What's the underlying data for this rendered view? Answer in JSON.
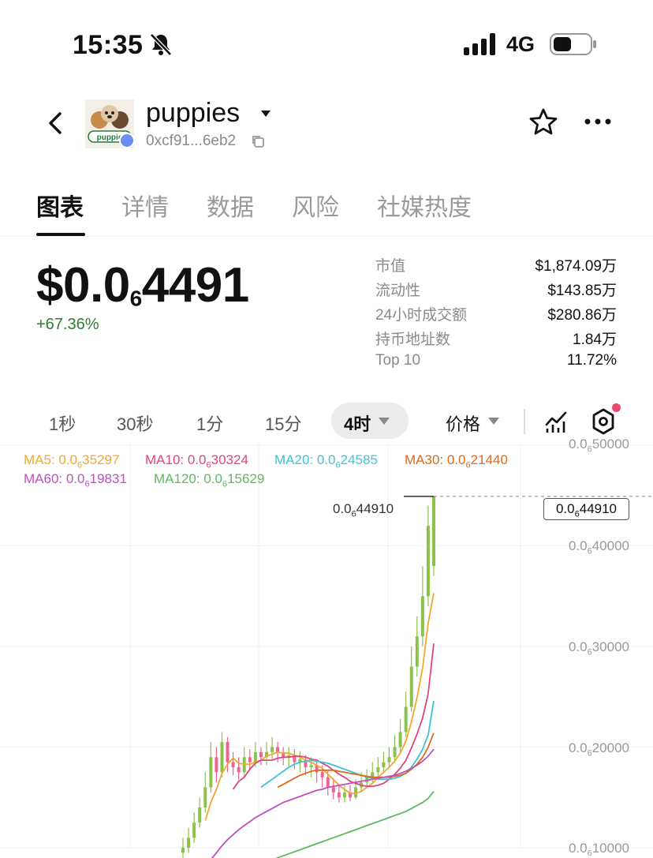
{
  "status_bar": {
    "time": "15:35",
    "network": "4G"
  },
  "header": {
    "token_name": "puppies",
    "address": "0xcf91...6eb2",
    "avatar_text": "puppie"
  },
  "tabs": [
    {
      "label": "图表",
      "active": true
    },
    {
      "label": "详情",
      "active": false
    },
    {
      "label": "数据",
      "active": false
    },
    {
      "label": "风险",
      "active": false
    },
    {
      "label": "社媒热度",
      "active": false
    }
  ],
  "price": {
    "prefix": "$0.0",
    "zeros_subscript": "6",
    "digits": "4491",
    "change": "+67.36%"
  },
  "stats": [
    {
      "label": "市值",
      "value": "$1,874.09万"
    },
    {
      "label": "流动性",
      "value": "$143.85万"
    },
    {
      "label": "24小时成交额",
      "value": "$280.86万"
    },
    {
      "label": "持币地址数",
      "value": "1.84万"
    },
    {
      "label": "Top 10",
      "value": "11.72%"
    }
  ],
  "timeframes": {
    "items": [
      "1秒",
      "30秒",
      "1分",
      "15分"
    ],
    "active": "4时",
    "price_type": "价格"
  },
  "colors": {
    "up": "#8bc34a",
    "down": "#f06292",
    "ma5": "#f0a830",
    "ma10": "#e0457b",
    "ma20": "#3cc4d6",
    "ma30": "#e06a1a",
    "ma60": "#c04fc0",
    "ma120": "#5fb85f"
  },
  "chart_legend": [
    {
      "name": "MA5",
      "prefix": "MA5: 0.0",
      "sub": "6",
      "rest": "35297"
    },
    {
      "name": "MA10",
      "prefix": "MA10: 0.0",
      "sub": "6",
      "rest": "30324"
    },
    {
      "name": "MA20",
      "prefix": "MA20: 0.0",
      "sub": "6",
      "rest": "24585"
    },
    {
      "name": "MA30",
      "prefix": "MA30: 0.0",
      "sub": "6",
      "rest": "21440"
    },
    {
      "name": "MA60",
      "prefix": "MA60: 0.0",
      "sub": "6",
      "rest": "19831"
    },
    {
      "name": "MA120",
      "prefix": "MA120: 0.0",
      "sub": "6",
      "rest": "15629"
    }
  ],
  "chart_data": {
    "type": "candlestick",
    "y_unit": "price (×1e-6 USD, displayed as 0.0₆xxxxx)",
    "y_ticks": [
      {
        "prefix": "0.0",
        "sub": "6",
        "rest": "50000",
        "value": 0.5
      },
      {
        "prefix": "0.0",
        "sub": "6",
        "rest": "40000",
        "value": 0.4
      },
      {
        "prefix": "0.0",
        "sub": "6",
        "rest": "30000",
        "value": 0.3
      },
      {
        "prefix": "0.0",
        "sub": "6",
        "rest": "20000",
        "value": 0.2
      },
      {
        "prefix": "0.0",
        "sub": "6",
        "rest": "10000",
        "value": 0.1
      }
    ],
    "ylim": [
      0.095,
      0.51
    ],
    "high_label": {
      "prefix": "0.0",
      "sub": "6",
      "rest": "44910",
      "value": 0.4491
    },
    "current": {
      "prefix": "0.0",
      "sub": "6",
      "rest": "44910",
      "value": 0.4491
    },
    "close": [
      0.1,
      0.11,
      0.125,
      0.14,
      0.16,
      0.19,
      0.175,
      0.205,
      0.185,
      0.18,
      0.175,
      0.19,
      0.185,
      0.195,
      0.19,
      0.195,
      0.2,
      0.195,
      0.19,
      0.192,
      0.185,
      0.188,
      0.18,
      0.182,
      0.175,
      0.17,
      0.16,
      0.155,
      0.15,
      0.155,
      0.15,
      0.16,
      0.165,
      0.17,
      0.175,
      0.18,
      0.185,
      0.19,
      0.2,
      0.215,
      0.24,
      0.28,
      0.31,
      0.35,
      0.42,
      0.4491
    ],
    "open": [
      0.095,
      0.1,
      0.11,
      0.125,
      0.14,
      0.16,
      0.19,
      0.175,
      0.205,
      0.185,
      0.18,
      0.175,
      0.19,
      0.185,
      0.195,
      0.19,
      0.195,
      0.2,
      0.195,
      0.19,
      0.192,
      0.185,
      0.188,
      0.18,
      0.182,
      0.175,
      0.17,
      0.16,
      0.155,
      0.15,
      0.155,
      0.15,
      0.16,
      0.165,
      0.17,
      0.175,
      0.18,
      0.185,
      0.19,
      0.2,
      0.215,
      0.24,
      0.28,
      0.31,
      0.35,
      0.38
    ],
    "high": [
      0.11,
      0.12,
      0.135,
      0.15,
      0.175,
      0.205,
      0.2,
      0.215,
      0.21,
      0.195,
      0.19,
      0.2,
      0.198,
      0.205,
      0.2,
      0.205,
      0.21,
      0.205,
      0.2,
      0.2,
      0.198,
      0.196,
      0.192,
      0.19,
      0.188,
      0.182,
      0.176,
      0.168,
      0.162,
      0.162,
      0.162,
      0.168,
      0.175,
      0.178,
      0.185,
      0.19,
      0.195,
      0.2,
      0.212,
      0.228,
      0.255,
      0.3,
      0.33,
      0.38,
      0.44,
      0.4491
    ],
    "low": [
      0.09,
      0.095,
      0.105,
      0.12,
      0.135,
      0.155,
      0.165,
      0.17,
      0.175,
      0.172,
      0.168,
      0.17,
      0.178,
      0.18,
      0.182,
      0.182,
      0.188,
      0.185,
      0.182,
      0.18,
      0.178,
      0.175,
      0.172,
      0.17,
      0.165,
      0.16,
      0.152,
      0.148,
      0.145,
      0.145,
      0.146,
      0.148,
      0.155,
      0.16,
      0.165,
      0.17,
      0.175,
      0.18,
      0.185,
      0.195,
      0.21,
      0.235,
      0.27,
      0.3,
      0.34,
      0.37
    ],
    "ma_series": [
      {
        "name": "MA5",
        "values": [
          null,
          null,
          null,
          null,
          0.127,
          0.145,
          0.158,
          0.174,
          0.183,
          0.189,
          0.184,
          0.183,
          0.183,
          0.185,
          0.187,
          0.191,
          0.193,
          0.195,
          0.194,
          0.194,
          0.192,
          0.19,
          0.187,
          0.185,
          0.182,
          0.179,
          0.173,
          0.168,
          0.162,
          0.158,
          0.154,
          0.154,
          0.156,
          0.16,
          0.164,
          0.17,
          0.175,
          0.18,
          0.186,
          0.194,
          0.206,
          0.225,
          0.249,
          0.279,
          0.323,
          0.353
        ]
      },
      {
        "name": "MA10",
        "values": [
          null,
          null,
          null,
          null,
          null,
          null,
          null,
          null,
          null,
          0.158,
          0.166,
          0.17,
          0.178,
          0.184,
          0.187,
          0.187,
          0.187,
          0.189,
          0.19,
          0.19,
          0.191,
          0.191,
          0.19,
          0.188,
          0.187,
          0.184,
          0.181,
          0.177,
          0.173,
          0.17,
          0.166,
          0.164,
          0.162,
          0.161,
          0.161,
          0.162,
          0.164,
          0.168,
          0.173,
          0.179,
          0.187,
          0.199,
          0.213,
          0.229,
          0.253,
          0.303
        ]
      },
      {
        "name": "MA20",
        "values": [
          null,
          null,
          null,
          null,
          null,
          null,
          null,
          null,
          null,
          null,
          null,
          null,
          null,
          null,
          0.16,
          0.164,
          0.168,
          0.172,
          0.176,
          0.18,
          0.183,
          0.185,
          0.186,
          0.187,
          0.186,
          0.185,
          0.184,
          0.182,
          0.18,
          0.178,
          0.176,
          0.174,
          0.172,
          0.17,
          0.169,
          0.168,
          0.168,
          0.168,
          0.169,
          0.171,
          0.174,
          0.18,
          0.188,
          0.198,
          0.212,
          0.246
        ]
      },
      {
        "name": "MA30",
        "values": [
          null,
          null,
          null,
          null,
          null,
          null,
          null,
          null,
          null,
          null,
          null,
          null,
          null,
          null,
          null,
          null,
          null,
          0.16,
          0.163,
          0.166,
          0.169,
          0.172,
          0.174,
          0.176,
          0.177,
          0.177,
          0.177,
          0.177,
          0.176,
          0.175,
          0.174,
          0.173,
          0.172,
          0.171,
          0.17,
          0.17,
          0.17,
          0.17,
          0.171,
          0.172,
          0.174,
          0.178,
          0.183,
          0.19,
          0.2,
          0.214
        ]
      },
      {
        "name": "MA60",
        "values": [
          null,
          null,
          null,
          null,
          0.08,
          0.088,
          0.095,
          0.102,
          0.108,
          0.113,
          0.118,
          0.122,
          0.126,
          0.13,
          0.133,
          0.136,
          0.139,
          0.142,
          0.145,
          0.147,
          0.149,
          0.151,
          0.153,
          0.155,
          0.157,
          0.158,
          0.16,
          0.161,
          0.162,
          0.163,
          0.164,
          0.165,
          0.166,
          0.167,
          0.168,
          0.169,
          0.17,
          0.171,
          0.172,
          0.174,
          0.176,
          0.179,
          0.182,
          0.186,
          0.191,
          0.198
        ]
      },
      {
        "name": "MA120",
        "values": [
          null,
          null,
          null,
          null,
          null,
          null,
          null,
          null,
          null,
          null,
          null,
          null,
          0.08,
          0.082,
          0.084,
          0.086,
          0.088,
          0.09,
          0.092,
          0.094,
          0.096,
          0.098,
          0.1,
          0.102,
          0.104,
          0.106,
          0.108,
          0.11,
          0.112,
          0.114,
          0.116,
          0.118,
          0.12,
          0.122,
          0.124,
          0.126,
          0.128,
          0.13,
          0.132,
          0.134,
          0.136,
          0.139,
          0.142,
          0.145,
          0.149,
          0.156
        ]
      }
    ]
  }
}
